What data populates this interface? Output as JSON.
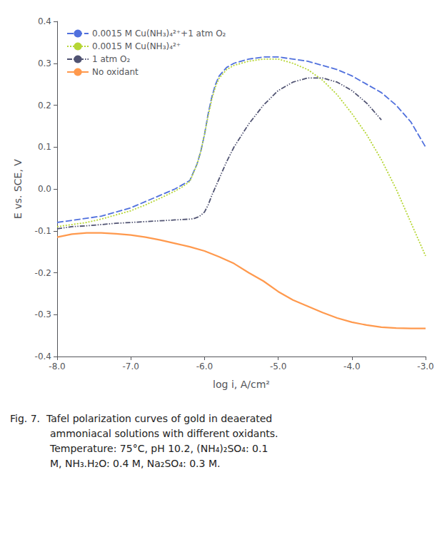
{
  "chart_data": {
    "type": "line",
    "xlabel": "log i, A/cm²",
    "ylabel": "E vs. SCE, V",
    "xlim": [
      -8.0,
      -3.0
    ],
    "ylim": [
      -0.4,
      0.4
    ],
    "xticks": [
      {
        "value": -8.0,
        "label": "-8.0"
      },
      {
        "value": -7.0,
        "label": "-7.0"
      },
      {
        "value": -6.0,
        "label": "-6.0"
      },
      {
        "value": -5.0,
        "label": "-5.0"
      },
      {
        "value": -4.0,
        "label": "-4.0"
      },
      {
        "value": -3.0,
        "label": "-3.0"
      }
    ],
    "yticks": [
      -0.4,
      -0.3,
      -0.2,
      -0.1,
      {
        "value": 0.0,
        "label": "0.0"
      },
      0.1,
      0.2,
      0.3,
      0.4
    ],
    "grid": false,
    "legend": "upper left",
    "series": [
      {
        "name": "0.0015 M Cu(NH₃)₄²⁺+1 atm O₂",
        "line_style": "dashed",
        "x": [
          -8.0,
          -7.8,
          -7.6,
          -7.4,
          -7.2,
          -7.0,
          -6.8,
          -6.6,
          -6.4,
          -6.3,
          -6.2,
          -6.15,
          -6.1,
          -6.05,
          -6.0,
          -5.95,
          -5.9,
          -5.85,
          -5.8,
          -5.7,
          -5.6,
          -5.4,
          -5.2,
          -5.0,
          -4.8,
          -4.6,
          -4.4,
          -4.2,
          -4.0,
          -3.8,
          -3.6,
          -3.4,
          -3.2,
          -3.0
        ],
        "values": [
          -0.08,
          -0.075,
          -0.07,
          -0.065,
          -0.055,
          -0.045,
          -0.03,
          -0.015,
          0.0,
          0.01,
          0.02,
          0.04,
          0.06,
          0.09,
          0.13,
          0.18,
          0.22,
          0.25,
          0.27,
          0.29,
          0.3,
          0.31,
          0.315,
          0.315,
          0.31,
          0.305,
          0.295,
          0.285,
          0.27,
          0.25,
          0.23,
          0.2,
          0.16,
          0.1
        ]
      },
      {
        "name": "0.0015 M Cu(NH₃)₄²⁺",
        "line_style": "dotted",
        "x": [
          -8.0,
          -7.8,
          -7.6,
          -7.4,
          -7.2,
          -7.0,
          -6.8,
          -6.6,
          -6.4,
          -6.3,
          -6.2,
          -6.15,
          -6.1,
          -6.05,
          -6.0,
          -5.95,
          -5.9,
          -5.85,
          -5.8,
          -5.7,
          -5.6,
          -5.4,
          -5.2,
          -5.0,
          -4.8,
          -4.6,
          -4.4,
          -4.2,
          -4.0,
          -3.8,
          -3.6,
          -3.4,
          -3.2,
          -3.0
        ],
        "values": [
          -0.09,
          -0.085,
          -0.08,
          -0.072,
          -0.062,
          -0.052,
          -0.038,
          -0.022,
          -0.005,
          0.005,
          0.018,
          0.038,
          0.06,
          0.09,
          0.13,
          0.175,
          0.215,
          0.245,
          0.265,
          0.285,
          0.295,
          0.305,
          0.31,
          0.31,
          0.3,
          0.285,
          0.26,
          0.225,
          0.18,
          0.13,
          0.07,
          0.0,
          -0.08,
          -0.16
        ]
      },
      {
        "name": "1 atm O₂",
        "line_style": "dashdot",
        "x": [
          -8.0,
          -7.8,
          -7.6,
          -7.4,
          -7.2,
          -7.0,
          -6.8,
          -6.6,
          -6.4,
          -6.3,
          -6.2,
          -6.15,
          -6.1,
          -6.05,
          -6.0,
          -5.95,
          -5.9,
          -5.8,
          -5.7,
          -5.6,
          -5.4,
          -5.2,
          -5.0,
          -4.8,
          -4.6,
          -4.4,
          -4.2,
          -4.0,
          -3.8,
          -3.6
        ],
        "values": [
          -0.095,
          -0.09,
          -0.088,
          -0.085,
          -0.082,
          -0.08,
          -0.078,
          -0.076,
          -0.074,
          -0.073,
          -0.072,
          -0.071,
          -0.068,
          -0.063,
          -0.055,
          -0.038,
          -0.015,
          0.025,
          0.065,
          0.1,
          0.155,
          0.2,
          0.235,
          0.255,
          0.265,
          0.265,
          0.255,
          0.235,
          0.205,
          0.165
        ]
      },
      {
        "name": "No oxidant",
        "line_style": "solid",
        "x": [
          -8.0,
          -7.8,
          -7.6,
          -7.4,
          -7.2,
          -7.0,
          -6.8,
          -6.6,
          -6.4,
          -6.2,
          -6.0,
          -5.8,
          -5.6,
          -5.4,
          -5.2,
          -5.0,
          -4.8,
          -4.6,
          -4.4,
          -4.2,
          -4.0,
          -3.8,
          -3.6,
          -3.4,
          -3.2,
          -3.0
        ],
        "values": [
          -0.115,
          -0.108,
          -0.105,
          -0.105,
          -0.107,
          -0.11,
          -0.115,
          -0.122,
          -0.13,
          -0.138,
          -0.148,
          -0.162,
          -0.178,
          -0.2,
          -0.22,
          -0.245,
          -0.265,
          -0.28,
          -0.295,
          -0.308,
          -0.318,
          -0.325,
          -0.33,
          -0.332,
          -0.333,
          -0.333
        ]
      }
    ],
    "caption": [
      "Fig. 7.  Tafel polarization curves of gold in deaerated",
      "ammoniacal solutions with different oxidants.",
      "Temperature: 75°C, pH 10.2, (NH₄)₂SO₄: 0.1",
      "M, NH₃.H₂O: 0.4 M, Na₂SO₄: 0.3 M."
    ]
  }
}
